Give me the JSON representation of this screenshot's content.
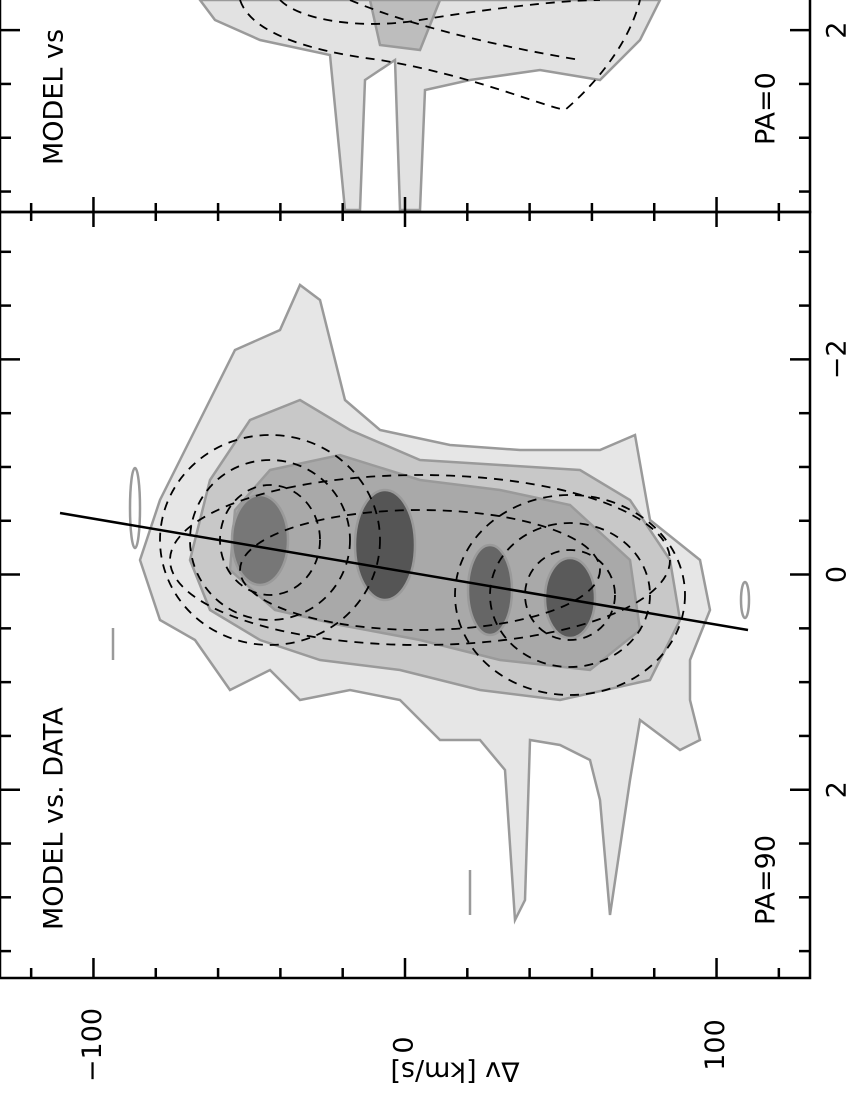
{
  "chart_data": {
    "type": "contour",
    "xlabel": "Δv [km/s]",
    "xlim": [
      -130,
      130
    ],
    "xticks": [
      {
        "value": -100,
        "label": "−100"
      },
      0,
      100
    ],
    "xticks_minor": [
      -120,
      -80,
      -60,
      -40,
      -20,
      20,
      40,
      60,
      80,
      120
    ],
    "panels": [
      {
        "title": "MODEL vs",
        "label": "PA=0",
        "ylim": [
          1.72,
          3.69
        ],
        "yticks": [
          2
        ],
        "yticks_minor": [
          2.5,
          3,
          3.5
        ]
      },
      {
        "title": "MODEL vs. DATA",
        "label": "PA=90",
        "ylim": [
          -3.37,
          3.75
        ],
        "yticks": [
          {
            "value": -2,
            "label": "−2"
          },
          0,
          2
        ],
        "yticks_minor": [
          -3,
          -2.5,
          -1.5,
          -1,
          -0.5,
          0.5,
          1,
          1.5,
          2.5,
          3,
          3.5
        ]
      }
    ]
  }
}
